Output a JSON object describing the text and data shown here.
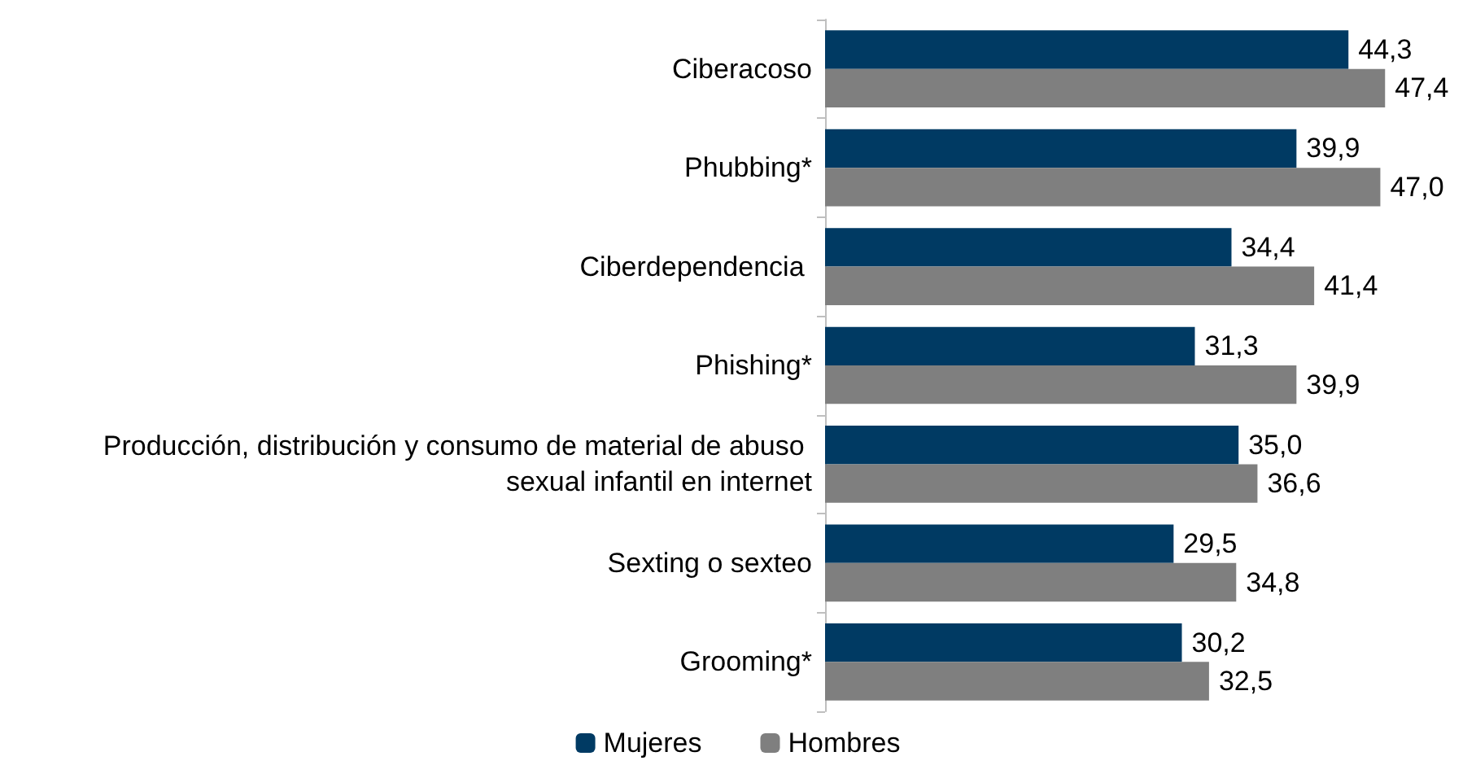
{
  "chart_data": {
    "type": "bar",
    "orientation": "horizontal",
    "categories": [
      "Ciberacoso",
      "Phubbing*",
      "Ciberdependencia ",
      "Phishing*",
      "Producción, distribución y consumo de material de abuso sexual infantil en internet",
      "Sexting o sexteo",
      "Grooming*"
    ],
    "series": [
      {
        "name": "Mujeres",
        "color": "#003a63",
        "values": [
          44.3,
          39.9,
          34.4,
          31.3,
          35.0,
          29.5,
          30.2
        ],
        "value_labels": [
          "44,3",
          "39,9",
          "34,4",
          "31,3",
          "35,0",
          "29,5",
          "30,2"
        ]
      },
      {
        "name": "Hombres",
        "color": "#7f7f7f",
        "values": [
          47.4,
          47.0,
          41.4,
          39.9,
          36.6,
          34.8,
          32.5
        ],
        "value_labels": [
          "47,4",
          "47,0",
          "41,4",
          "39,9",
          "36,6",
          "34,8",
          "32,5"
        ]
      }
    ],
    "legend": "bottom",
    "grid": false
  }
}
